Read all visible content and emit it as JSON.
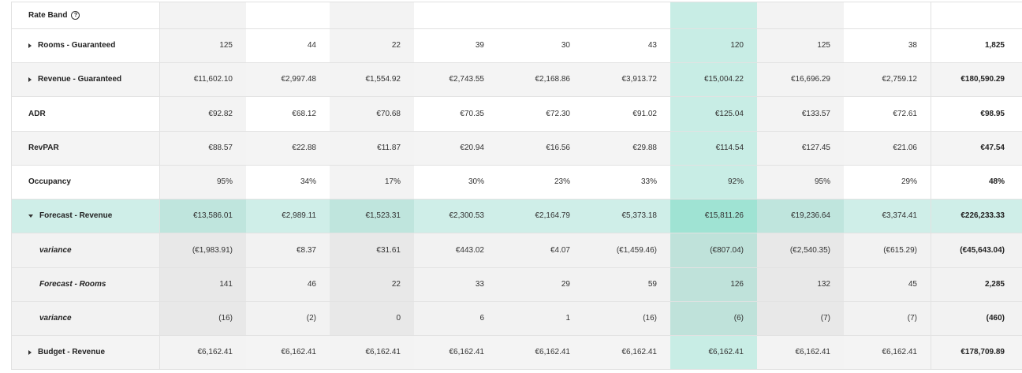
{
  "header": {
    "rate_band_label": "Rate Band",
    "help_icon": "question-circle-icon"
  },
  "rows": [
    {
      "label": "Rooms - Guaranteed",
      "expand": "collapsed",
      "style": "normal",
      "values": [
        "125",
        "44",
        "22",
        "39",
        "30",
        "43",
        "120",
        "125",
        "38"
      ],
      "total": "1,825"
    },
    {
      "label": "Revenue - Guaranteed",
      "expand": "collapsed",
      "style": "normal",
      "values": [
        "€11,602.10",
        "€2,997.48",
        "€1,554.92",
        "€2,743.55",
        "€2,168.86",
        "€3,913.72",
        "€15,004.22",
        "€16,696.29",
        "€2,759.12"
      ],
      "total": "€180,590.29"
    },
    {
      "label": "ADR",
      "expand": "none",
      "style": "normal",
      "values": [
        "€92.82",
        "€68.12",
        "€70.68",
        "€70.35",
        "€72.30",
        "€91.02",
        "€125.04",
        "€133.57",
        "€72.61"
      ],
      "total": "€98.95"
    },
    {
      "label": "RevPAR",
      "expand": "none",
      "style": "normal",
      "values": [
        "€88.57",
        "€22.88",
        "€11.87",
        "€20.94",
        "€16.56",
        "€29.88",
        "€114.54",
        "€127.45",
        "€21.06"
      ],
      "total": "€47.54"
    },
    {
      "label": "Occupancy",
      "expand": "none",
      "style": "normal",
      "values": [
        "95%",
        "34%",
        "17%",
        "30%",
        "23%",
        "33%",
        "92%",
        "95%",
        "29%"
      ],
      "total": "48%"
    },
    {
      "label": "Forecast - Revenue",
      "expand": "expanded",
      "style": "highlight",
      "values": [
        "€13,586.01",
        "€2,989.11",
        "€1,523.31",
        "€2,300.53",
        "€2,164.79",
        "€5,373.18",
        "€15,811.26",
        "€19,236.64",
        "€3,374.41"
      ],
      "total": "€226,233.33"
    },
    {
      "label": "variance",
      "expand": "none",
      "style": "sub",
      "values": [
        "(€1,983.91)",
        "€8.37",
        "€31.61",
        "€443.02",
        "€4.07",
        "(€1,459.46)",
        "(€807.04)",
        "(€2,540.35)",
        "(€615.29)"
      ],
      "total": "(€45,643.04)"
    },
    {
      "label": "Forecast - Rooms",
      "expand": "none",
      "style": "sub",
      "values": [
        "141",
        "46",
        "22",
        "33",
        "29",
        "59",
        "126",
        "132",
        "45"
      ],
      "total": "2,285"
    },
    {
      "label": "variance",
      "expand": "none",
      "style": "sub",
      "values": [
        "(16)",
        "(2)",
        "0",
        "6",
        "1",
        "(16)",
        "(6)",
        "(7)",
        "(7)"
      ],
      "total": "(460)"
    },
    {
      "label": "Budget - Revenue",
      "expand": "collapsed",
      "style": "normal",
      "values": [
        "€6,162.41",
        "€6,162.41",
        "€6,162.41",
        "€6,162.41",
        "€6,162.41",
        "€6,162.41",
        "€6,162.41",
        "€6,162.41",
        "€6,162.41"
      ],
      "total": "€178,709.89"
    }
  ],
  "selected_column": 6,
  "colors": {
    "row_white": "#ffffff",
    "row_stripe": "#f4f4f4",
    "col_band": "#ededed",
    "selected_col": "#c8ede5",
    "highlight_row": "#cfeee8",
    "highlight_row_band": "#bfe5dd",
    "highlight_selected": "#9fe3d3",
    "sub_row": "#f2f2f2",
    "sub_row_band": "#e8e8e8",
    "sub_selected": "#bfe2da",
    "border": "#e2e2e2"
  }
}
